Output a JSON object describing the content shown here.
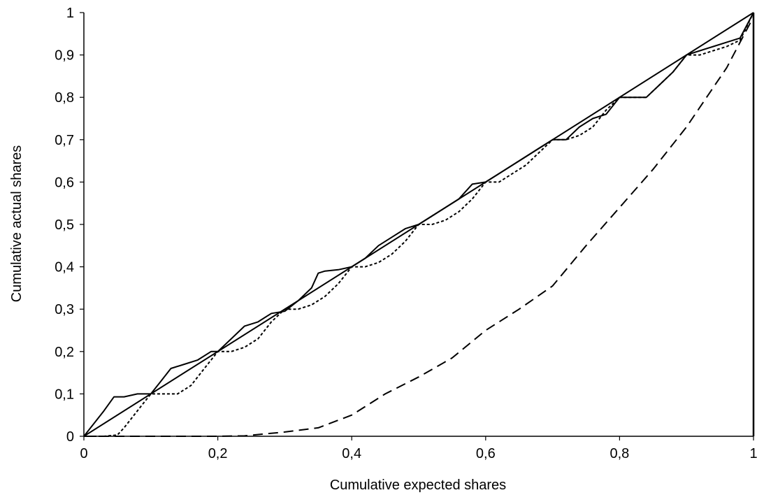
{
  "chart_data": {
    "type": "line",
    "xlabel": "Cumulative expected shares",
    "ylabel": "Cumulative actual shares",
    "xlim": [
      0,
      1
    ],
    "ylim": [
      0,
      1
    ],
    "grid": false,
    "legend": "none",
    "x_ticks": [
      "0",
      "0,2",
      "0,4",
      "0,6",
      "0,8",
      "1"
    ],
    "y_ticks": [
      "0",
      "0,1",
      "0,2",
      "0,3",
      "0,4",
      "0,5",
      "0,6",
      "0,7",
      "0,8",
      "0,9",
      "1"
    ],
    "series": [
      {
        "style": "solid",
        "x": [
          0,
          1
        ],
        "y": [
          0,
          1
        ]
      },
      {
        "style": "solid",
        "x": [
          0,
          0.03,
          0.045,
          0.06,
          0.08,
          0.1,
          0.115,
          0.13,
          0.15,
          0.17,
          0.19,
          0.2,
          0.22,
          0.24,
          0.26,
          0.28,
          0.3,
          0.32,
          0.34,
          0.35,
          0.36,
          0.38,
          0.4,
          0.42,
          0.44,
          0.46,
          0.48,
          0.5,
          0.52,
          0.54,
          0.56,
          0.58,
          0.6,
          0.62,
          0.64,
          0.66,
          0.68,
          0.7,
          0.72,
          0.74,
          0.76,
          0.78,
          0.8,
          0.82,
          0.84,
          0.86,
          0.88,
          0.9,
          0.92,
          0.94,
          0.96,
          0.98,
          1.0
        ],
        "y": [
          0,
          0.06,
          0.093,
          0.093,
          0.1,
          0.1,
          0.13,
          0.16,
          0.17,
          0.18,
          0.2,
          0.2,
          0.23,
          0.26,
          0.27,
          0.29,
          0.295,
          0.32,
          0.35,
          0.385,
          0.39,
          0.393,
          0.4,
          0.42,
          0.45,
          0.47,
          0.49,
          0.5,
          0.52,
          0.54,
          0.56,
          0.595,
          0.6,
          0.62,
          0.64,
          0.66,
          0.68,
          0.7,
          0.7,
          0.73,
          0.75,
          0.76,
          0.8,
          0.8,
          0.8,
          0.83,
          0.86,
          0.9,
          0.91,
          0.92,
          0.93,
          0.94,
          1.0
        ]
      },
      {
        "style": "dotted",
        "x": [
          0,
          0.03,
          0.05,
          0.06,
          0.08,
          0.1,
          0.12,
          0.14,
          0.16,
          0.18,
          0.2,
          0.22,
          0.24,
          0.26,
          0.28,
          0.3,
          0.32,
          0.34,
          0.36,
          0.38,
          0.4,
          0.42,
          0.44,
          0.46,
          0.48,
          0.5,
          0.52,
          0.54,
          0.56,
          0.58,
          0.6,
          0.62,
          0.64,
          0.66,
          0.68,
          0.7,
          0.72,
          0.74,
          0.76,
          0.78,
          0.8,
          0.82,
          0.84,
          0.86,
          0.88,
          0.9,
          0.92,
          0.94,
          0.96,
          0.98,
          1.0
        ],
        "y": [
          0,
          0,
          0.003,
          0.02,
          0.06,
          0.1,
          0.1,
          0.1,
          0.12,
          0.16,
          0.2,
          0.2,
          0.21,
          0.23,
          0.27,
          0.3,
          0.3,
          0.31,
          0.33,
          0.36,
          0.4,
          0.4,
          0.41,
          0.43,
          0.46,
          0.5,
          0.5,
          0.51,
          0.53,
          0.56,
          0.6,
          0.6,
          0.62,
          0.64,
          0.67,
          0.7,
          0.7,
          0.71,
          0.73,
          0.77,
          0.8,
          0.8,
          0.8,
          0.83,
          0.86,
          0.9,
          0.9,
          0.91,
          0.92,
          0.935,
          1.0
        ]
      },
      {
        "style": "dashed",
        "x": [
          0,
          0.1,
          0.2,
          0.24,
          0.3,
          0.35,
          0.4,
          0.45,
          0.5,
          0.55,
          0.6,
          0.65,
          0.7,
          0.75,
          0.8,
          0.85,
          0.9,
          0.93,
          0.96,
          0.98,
          1.0
        ],
        "y": [
          0,
          0,
          0,
          0.001,
          0.01,
          0.02,
          0.05,
          0.1,
          0.14,
          0.185,
          0.25,
          0.3,
          0.355,
          0.45,
          0.54,
          0.63,
          0.73,
          0.8,
          0.87,
          0.93,
          0.99
        ]
      }
    ]
  }
}
